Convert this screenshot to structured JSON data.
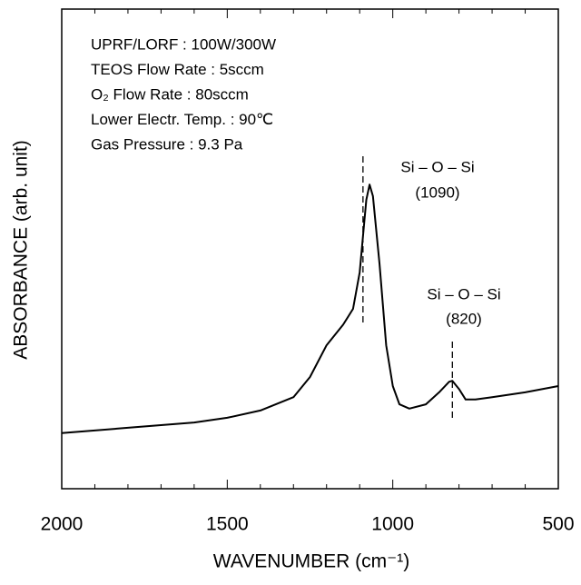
{
  "chart_data": {
    "type": "line",
    "xlabel": "WAVENUMBER (cm⁻¹)",
    "ylabel": "ABSORBANCE (arb. unit)",
    "annotations": [
      "UPRF/LORF : 100W/300W",
      "TEOS Flow Rate : 5sccm",
      "O₂ Flow Rate : 80sccm",
      "Lower Electr. Temp. : 90℃",
      "Gas Pressure : 9.3 Pa"
    ],
    "peaks": [
      {
        "name": "Si – O – Si",
        "label": "(1090)",
        "x": 1090
      },
      {
        "name": "Si – O – Si",
        "label": "(820)",
        "x": 820
      }
    ],
    "xlim": [
      2000,
      500
    ],
    "xticks": [
      2000,
      1500,
      1000,
      500
    ],
    "xminorticks": [
      1900,
      1800,
      1700,
      1600,
      1400,
      1300,
      1200,
      1100,
      900,
      800,
      700,
      600
    ],
    "ylim": [
      0,
      100
    ],
    "series": [
      {
        "color": "#000000",
        "x": [
          2000,
          1800,
          1600,
          1500,
          1400,
          1300,
          1250,
          1200,
          1150,
          1120,
          1100,
          1080,
          1070,
          1060,
          1040,
          1020,
          1000,
          980,
          950,
          900,
          860,
          830,
          820,
          800,
          780,
          750,
          700,
          600,
          500
        ],
        "values": [
          11.6,
          12.7,
          13.8,
          14.8,
          16.3,
          19.1,
          23.3,
          29.9,
          34.2,
          37.5,
          45.1,
          60.2,
          63.4,
          61.0,
          46.8,
          29.9,
          21.4,
          17.6,
          16.7,
          17.6,
          20.1,
          22.3,
          22.5,
          20.8,
          18.6,
          18.6,
          19.1,
          20.1,
          21.4
        ]
      }
    ]
  }
}
